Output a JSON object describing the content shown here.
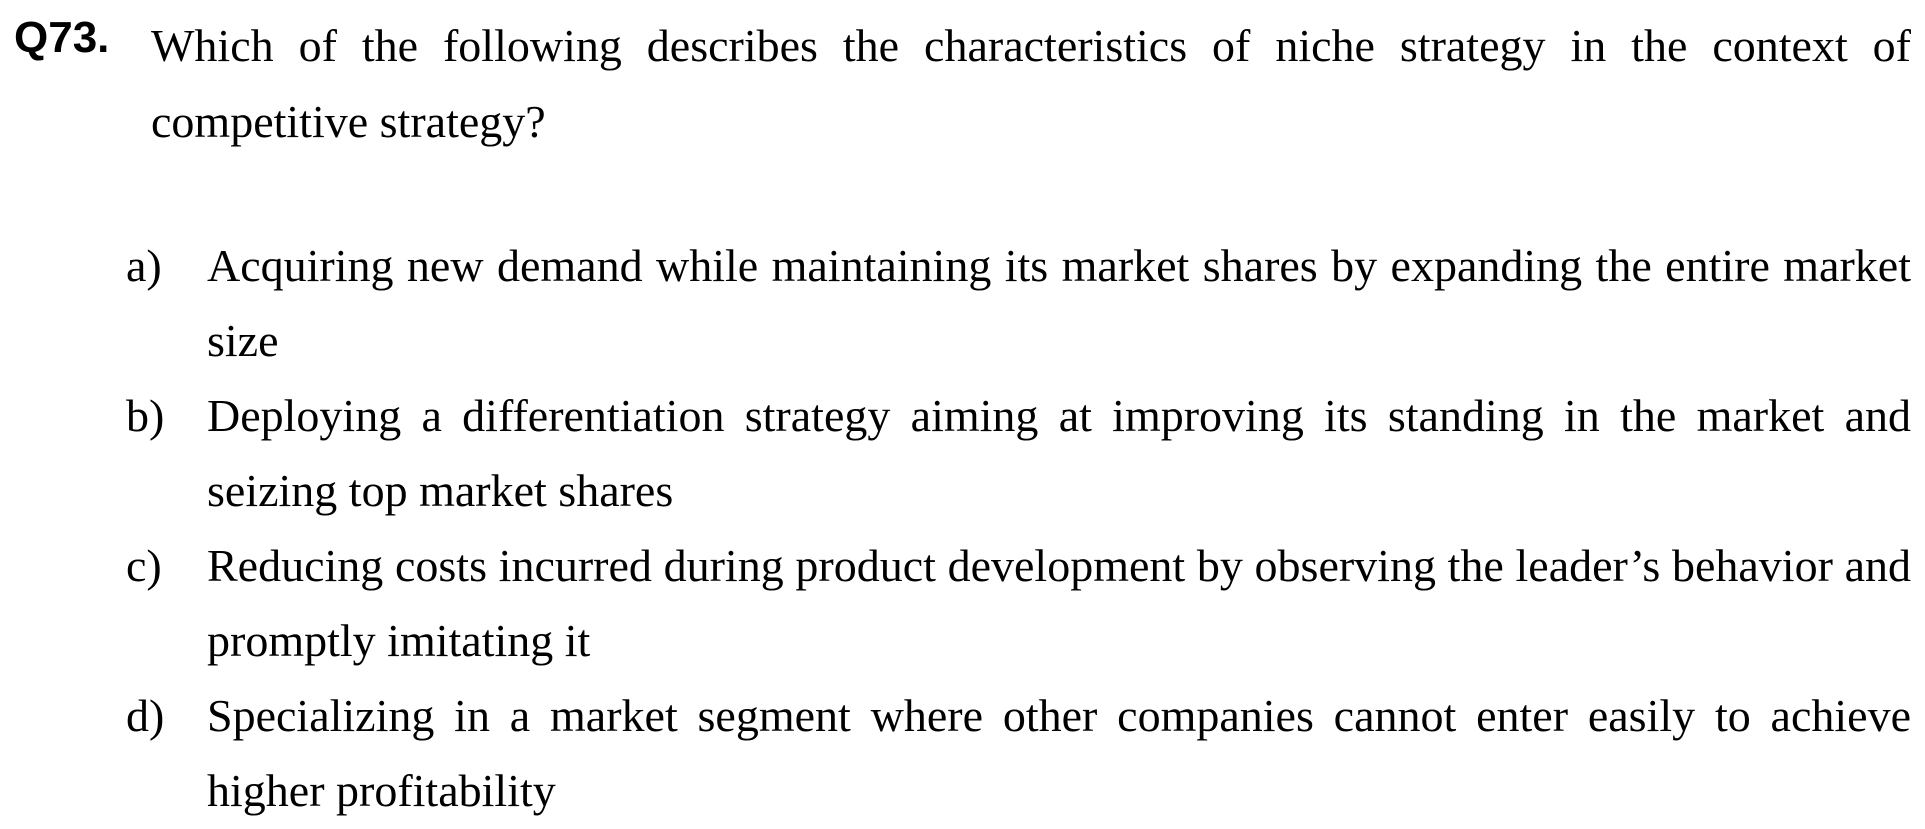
{
  "question": {
    "number": "Q73.",
    "text": "Which of the following describes the characteristics of niche strategy in the context of competitive strategy?"
  },
  "options": [
    {
      "letter": "a)",
      "text": "Acquiring new demand while maintaining its market shares by expanding the entire market size"
    },
    {
      "letter": "b)",
      "text": "Deploying a differentiation strategy aiming at improving its standing in the market and seizing top market shares"
    },
    {
      "letter": "c)",
      "text": "Reducing costs incurred during product development by observing the leader’s behavior and promptly imitating it"
    },
    {
      "letter": "d)",
      "text": "Specializing in a market segment where other companies cannot enter easily to achieve higher profitability"
    }
  ]
}
